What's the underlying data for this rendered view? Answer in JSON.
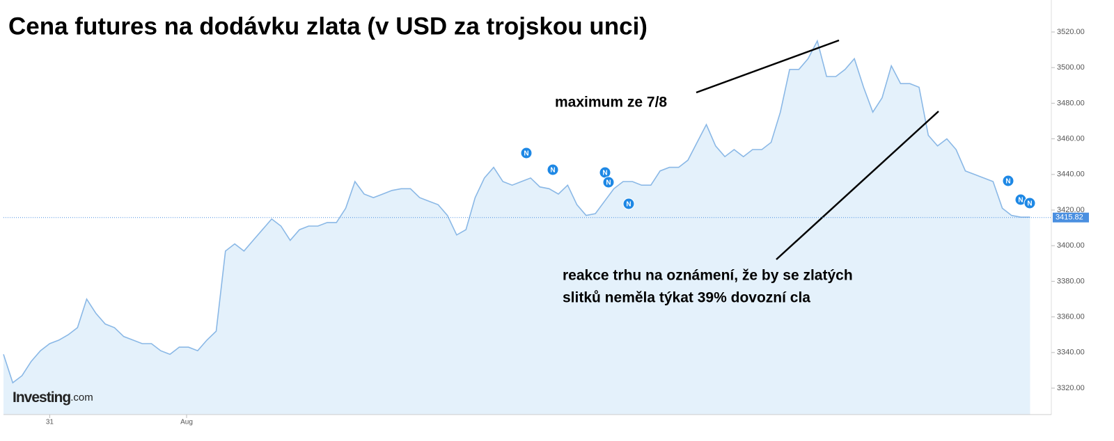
{
  "chart_data": {
    "type": "area",
    "title": "Cena futures na dodávku zlata (v USD za trojskou unci)",
    "annotations": [
      "maximum ze 7/8",
      "reakce trhu na oznámení, že by se zlatých",
      "slitků neměla týkat 39% dovozní cla"
    ],
    "news_label": "N",
    "logo": [
      "Investing",
      ".com"
    ],
    "last_price": 3415.82,
    "color": "#8ab8e6",
    "fill": "#e4f1fb",
    "values": [
      3339,
      3323,
      3327,
      3335,
      3341,
      3345,
      3347,
      3350,
      3354,
      3370,
      3362,
      3356,
      3354,
      3349,
      3347,
      3345,
      3345,
      3341,
      3339,
      3343,
      3343,
      3341,
      3347,
      3352,
      3397,
      3401,
      3397,
      3403,
      3409,
      3415,
      3411,
      3403,
      3409,
      3411,
      3411,
      3413,
      3413,
      3421,
      3436,
      3429,
      3427,
      3429,
      3431,
      3432,
      3432,
      3427,
      3425,
      3423,
      3417,
      3406,
      3409,
      3427,
      3438,
      3444,
      3436,
      3434,
      3436,
      3438,
      3433,
      3432,
      3429,
      3434,
      3423,
      3417,
      3418,
      3425,
      3432,
      3436,
      3436,
      3434,
      3434,
      3442,
      3444,
      3444,
      3448,
      3458,
      3468,
      3456,
      3450,
      3454,
      3450,
      3454,
      3454,
      3458,
      3475,
      3499,
      3499,
      3505,
      3515,
      3495,
      3495,
      3499,
      3505,
      3489,
      3475,
      3483,
      3501,
      3491,
      3491,
      3489,
      3462,
      3456,
      3460,
      3454,
      3442,
      3440,
      3438,
      3436,
      3421,
      3417,
      3416,
      3416
    ],
    "xlim": [
      0,
      113.3
    ],
    "xticks": [
      {
        "value": 5.0,
        "label": "31"
      },
      {
        "value": 19.8,
        "label": "Aug"
      }
    ],
    "ylim": [
      3305.16,
      3537.97
    ],
    "yticks": [
      {
        "value": 3320,
        "label": "3320.00"
      },
      {
        "value": 3340,
        "label": "3340.00"
      },
      {
        "value": 3360,
        "label": "3360.00"
      },
      {
        "value": 3380,
        "label": "3380.00"
      },
      {
        "value": 3400,
        "label": "3400.00"
      },
      {
        "value": 3420,
        "label": "3420.00"
      },
      {
        "value": 3440,
        "label": "3440.00"
      },
      {
        "value": 3460,
        "label": "3460.00"
      },
      {
        "value": 3480,
        "label": "3480.00"
      },
      {
        "value": 3500,
        "label": "3500.00"
      },
      {
        "value": 3520,
        "label": "3520.00"
      }
    ]
  }
}
